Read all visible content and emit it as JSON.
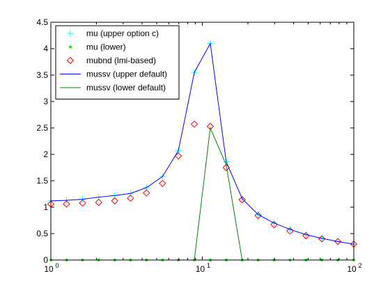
{
  "chart_data": {
    "type": "line",
    "x_scale": "log",
    "xlim": [
      1,
      100
    ],
    "ylim": [
      0,
      4.5
    ],
    "grid": false,
    "legend_position": "top-left",
    "x_ticks": [
      {
        "value": 1,
        "label": "10",
        "sup": "0"
      },
      {
        "value": 10,
        "label": "10",
        "sup": "1"
      },
      {
        "value": 100,
        "label": "10",
        "sup": "2"
      }
    ],
    "y_ticks": [
      {
        "value": 0,
        "label": "0"
      },
      {
        "value": 0.5,
        "label": "0.5"
      },
      {
        "value": 1,
        "label": "1"
      },
      {
        "value": 1.5,
        "label": "1.5"
      },
      {
        "value": 2,
        "label": "2"
      },
      {
        "value": 2.5,
        "label": "2.5"
      },
      {
        "value": 3,
        "label": "3"
      },
      {
        "value": 3.5,
        "label": "3.5"
      },
      {
        "value": 4,
        "label": "4"
      },
      {
        "value": 4.5,
        "label": "4.5"
      }
    ],
    "x": [
      1,
      1.27,
      1.62,
      2.07,
      2.64,
      3.36,
      4.28,
      5.46,
      6.95,
      8.86,
      11.29,
      14.38,
      18.33,
      23.36,
      29.76,
      37.93,
      48.33,
      61.58,
      78.48,
      100
    ],
    "series": [
      {
        "name": "mu (upper option c)",
        "marker": "plus",
        "color": "#00ffff",
        "y": [
          1.12,
          1.13,
          1.15,
          1.19,
          1.22,
          1.26,
          1.37,
          1.58,
          2.07,
          3.55,
          4.1,
          1.86,
          1.16,
          0.86,
          0.7,
          0.58,
          0.48,
          0.41,
          0.35,
          0.3
        ]
      },
      {
        "name": "mu (lower)",
        "marker": "dot",
        "color": "#00ee00",
        "y": [
          0,
          0,
          0,
          0,
          0,
          0,
          0,
          0,
          0,
          0,
          0,
          0,
          0,
          0,
          0,
          0,
          0,
          0,
          0,
          0
        ]
      },
      {
        "name": "mubnd (lmi-based)",
        "marker": "diamond",
        "color": "#ff0000",
        "y": [
          1.06,
          1.06,
          1.08,
          1.09,
          1.12,
          1.17,
          1.27,
          1.45,
          1.97,
          2.57,
          2.53,
          1.75,
          1.14,
          0.84,
          0.67,
          0.55,
          0.46,
          0.4,
          0.35,
          0.3
        ]
      },
      {
        "name": "mussv (upper default)",
        "marker": "line",
        "color": "#0000ff",
        "y": [
          1.12,
          1.13,
          1.15,
          1.19,
          1.22,
          1.26,
          1.37,
          1.58,
          2.07,
          3.55,
          4.1,
          1.86,
          1.16,
          0.86,
          0.7,
          0.58,
          0.48,
          0.41,
          0.35,
          0.3
        ]
      },
      {
        "name": "mussv (lower default)",
        "marker": "line",
        "color": "#008000",
        "y": [
          0,
          0,
          0,
          0,
          0,
          0,
          0,
          0,
          0,
          0,
          2.5,
          1.8,
          0,
          0,
          0,
          0,
          0,
          0,
          0,
          0
        ]
      }
    ]
  }
}
